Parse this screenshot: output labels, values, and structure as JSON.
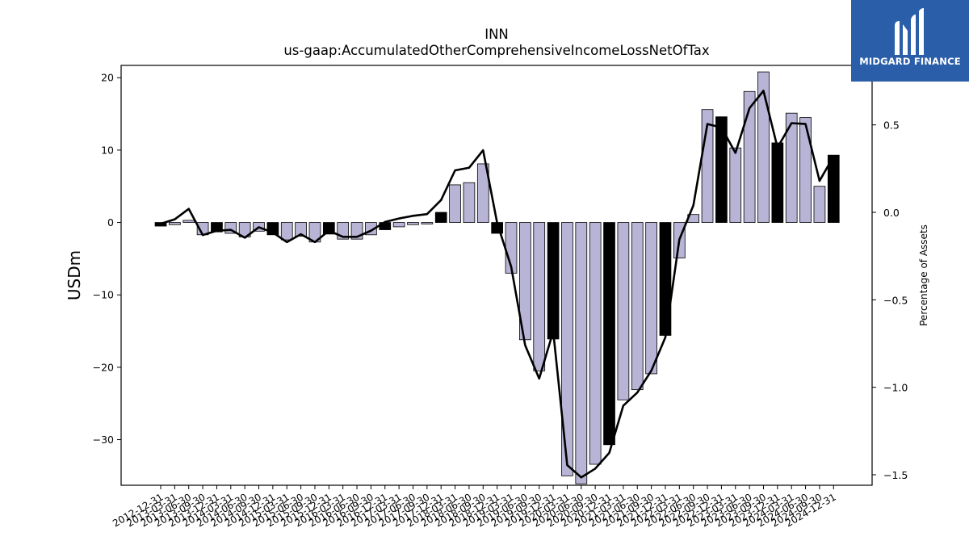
{
  "chart_data": {
    "type": "bar",
    "title": "INN",
    "subtitle": "us-gaap:AccumulatedOtherComprehensiveIncomeLossNetOfTax",
    "ylabel": "USDm",
    "ylabel_right": "Percentage of Assets",
    "ylim": [
      -36.3,
      21.7
    ],
    "ylim_right": [
      -1.56,
      0.84
    ],
    "yticks": [
      -30,
      -20,
      -10,
      0,
      10,
      20
    ],
    "yticks_right": [
      -1.5,
      -1.0,
      -0.5,
      0.0,
      0.5
    ],
    "yticks_right_labels": [
      "−1.5",
      "−1.0",
      "−0.5",
      "0.0",
      "0.5"
    ],
    "yticks_labels": [
      "−30",
      "−20",
      "−10",
      "0",
      "10",
      "20"
    ],
    "grid": false,
    "categories": [
      "2012-12-31",
      "2013-03-31",
      "2013-06-30",
      "2013-09-30",
      "2013-12-31",
      "2014-03-31",
      "2014-06-30",
      "2014-09-30",
      "2014-12-31",
      "2015-03-31",
      "2015-06-30",
      "2015-09-30",
      "2015-12-31",
      "2016-03-31",
      "2016-06-30",
      "2016-09-30",
      "2016-12-31",
      "2017-03-31",
      "2017-06-30",
      "2017-09-30",
      "2017-12-31",
      "2018-03-31",
      "2018-06-30",
      "2018-09-30",
      "2018-12-31",
      "2019-03-31",
      "2019-06-30",
      "2019-09-30",
      "2019-12-31",
      "2020-03-31",
      "2020-06-30",
      "2020-09-30",
      "2020-12-31",
      "2021-03-31",
      "2021-06-30",
      "2021-09-30",
      "2021-12-31",
      "2022-03-31",
      "2022-06-30",
      "2022-09-30",
      "2022-12-31",
      "2023-03-31",
      "2023-06-30",
      "2023-09-30",
      "2023-12-31",
      "2024-03-31",
      "2024-06-30",
      "2024-09-30",
      "2024-12-31"
    ],
    "series": [
      {
        "kind": "bar",
        "values": [
          -0.5,
          -0.3,
          0.3,
          -1.7,
          -1.3,
          -1.5,
          -2.0,
          -1.2,
          -1.7,
          -2.4,
          -1.9,
          -2.7,
          -1.6,
          -2.3,
          -2.3,
          -1.7,
          -1.0,
          -0.6,
          -0.3,
          -0.2,
          1.4,
          5.2,
          5.5,
          8.1,
          -1.5,
          -7.0,
          -16.2,
          -20.5,
          -16.1,
          -35.0,
          -36.1,
          -33.4,
          -30.7,
          -24.5,
          -23.1,
          -20.9,
          -15.6,
          -4.9,
          1.1,
          15.6,
          14.6,
          10.3,
          18.1,
          20.8,
          11.0,
          15.1,
          14.5,
          5.0,
          9.3
        ],
        "highlight": [
          true,
          false,
          false,
          false,
          true,
          false,
          false,
          false,
          true,
          false,
          false,
          false,
          true,
          false,
          false,
          false,
          true,
          false,
          false,
          false,
          true,
          false,
          false,
          false,
          true,
          false,
          false,
          false,
          true,
          false,
          false,
          false,
          true,
          false,
          false,
          false,
          true,
          false,
          false,
          false,
          true,
          false,
          false,
          false,
          true,
          false,
          false,
          false,
          true
        ],
        "color": "#b8b4d6",
        "highlight_color": "#000000",
        "edge_color": "#000000"
      },
      {
        "kind": "line",
        "axis": "right",
        "values": [
          -0.065,
          -0.04,
          0.02,
          -0.13,
          -0.105,
          -0.1,
          -0.145,
          -0.085,
          -0.115,
          -0.17,
          -0.125,
          -0.17,
          -0.105,
          -0.14,
          -0.14,
          -0.105,
          -0.055,
          -0.035,
          -0.02,
          -0.01,
          0.07,
          0.24,
          0.255,
          0.355,
          -0.06,
          -0.31,
          -0.76,
          -0.95,
          -0.68,
          -1.445,
          -1.515,
          -1.465,
          -1.375,
          -1.105,
          -1.03,
          -0.905,
          -0.715,
          -0.155,
          0.04,
          0.505,
          0.485,
          0.34,
          0.595,
          0.695,
          0.37,
          0.51,
          0.505,
          0.18,
          0.32
        ],
        "color": "#000000"
      }
    ]
  },
  "logo": {
    "text": "MIDGARD FINANCE",
    "bg_color": "#2a5ea9",
    "icon": "midgard-logo-icon"
  }
}
